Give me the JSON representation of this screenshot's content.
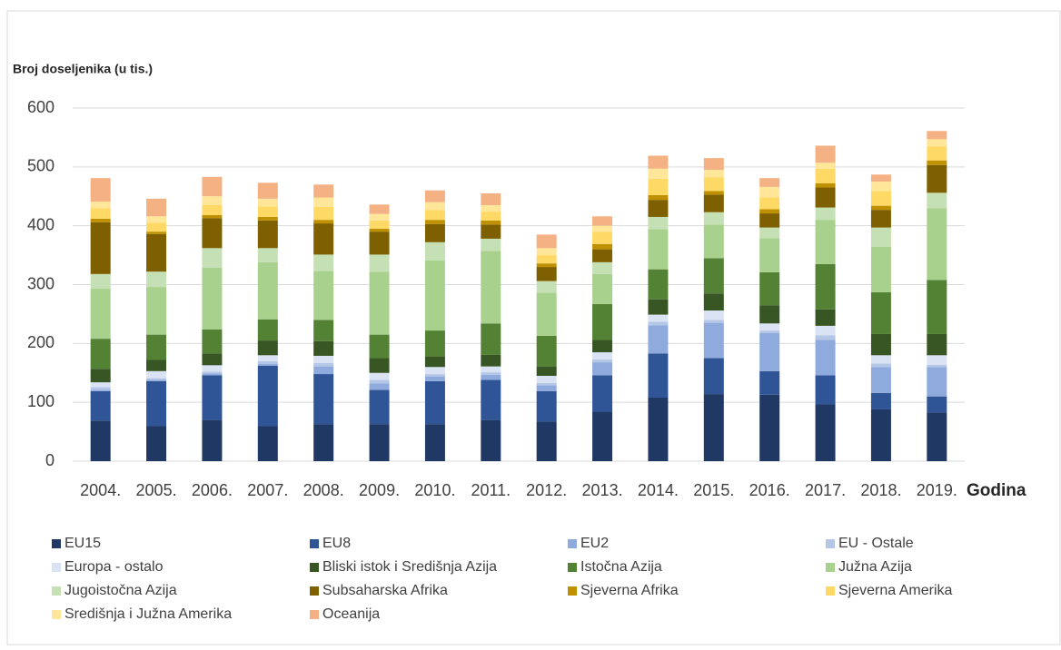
{
  "chart_data": {
    "type": "stacked_bar",
    "y_label": "Broj doseljenika (u tis.)",
    "x_label": "Godina",
    "categories": [
      "2004.",
      "2005.",
      "2006.",
      "2007.",
      "2008.",
      "2009.",
      "2010.",
      "2011.",
      "2012.",
      "2013.",
      "2014.",
      "2015.",
      "2016.",
      "2017.",
      "2018.",
      "2019."
    ],
    "ylim": [
      0,
      600
    ],
    "yticks": [
      0,
      100,
      200,
      300,
      400,
      500,
      600
    ],
    "grid": true,
    "legend": "bottom",
    "series": [
      {
        "name": "EU15",
        "color": "#203864",
        "values": [
          69,
          60,
          70,
          60,
          63,
          63,
          63,
          70,
          67,
          84,
          108,
          114,
          113,
          97,
          88,
          83
        ]
      },
      {
        "name": "EU8",
        "color": "#2f5597",
        "values": [
          50,
          76,
          76,
          102,
          85,
          58,
          73,
          68,
          52,
          62,
          75,
          61,
          40,
          49,
          28,
          27
        ]
      },
      {
        "name": "EU2",
        "color": "#8faadc",
        "values": [
          2,
          2,
          3,
          3,
          13,
          11,
          8,
          9,
          10,
          22,
          48,
          60,
          65,
          60,
          44,
          50
        ]
      },
      {
        "name": "EU - Ostale",
        "color": "#b4c7e7",
        "values": [
          5,
          3,
          3,
          5,
          6,
          6,
          4,
          4,
          4,
          5,
          6,
          5,
          4,
          8,
          6,
          4
        ]
      },
      {
        "name": "Europa - ostalo",
        "color": "#dae3f3",
        "values": [
          8,
          12,
          11,
          10,
          12,
          12,
          12,
          10,
          12,
          12,
          12,
          16,
          12,
          16,
          14,
          16
        ]
      },
      {
        "name": "Bliski istok i Središnja Azija",
        "color": "#375623",
        "values": [
          23,
          19,
          20,
          25,
          25,
          25,
          18,
          20,
          16,
          21,
          26,
          29,
          31,
          28,
          36,
          36
        ]
      },
      {
        "name": "Istočna Azija",
        "color": "#548235",
        "values": [
          51,
          43,
          41,
          36,
          36,
          40,
          44,
          53,
          52,
          61,
          51,
          60,
          56,
          77,
          71,
          92
        ]
      },
      {
        "name": "Južna Azija",
        "color": "#a9d18e",
        "values": [
          85,
          81,
          105,
          97,
          83,
          107,
          119,
          123,
          73,
          51,
          68,
          57,
          58,
          75,
          77,
          122
        ]
      },
      {
        "name": "Jugoistočna Azija",
        "color": "#c5e0b4",
        "values": [
          25,
          26,
          33,
          24,
          28,
          29,
          31,
          21,
          20,
          20,
          21,
          21,
          18,
          21,
          33,
          26
        ]
      },
      {
        "name": "Subsaharska Afrika",
        "color": "#7f6000",
        "values": [
          88,
          64,
          51,
          47,
          53,
          39,
          31,
          24,
          24,
          22,
          29,
          30,
          24,
          34,
          30,
          47
        ]
      },
      {
        "name": "Sjeverna Afrika",
        "color": "#bf9000",
        "values": [
          6,
          4,
          5,
          6,
          6,
          5,
          7,
          7,
          6,
          9,
          8,
          6,
          7,
          7,
          7,
          8
        ]
      },
      {
        "name": "Sjeverna Amerika",
        "color": "#ffd966",
        "values": [
          18,
          15,
          17,
          18,
          22,
          14,
          17,
          15,
          14,
          21,
          28,
          23,
          20,
          25,
          25,
          24
        ]
      },
      {
        "name": "Središnja i Južna Amerika",
        "color": "#ffe699",
        "values": [
          11,
          11,
          15,
          13,
          16,
          11,
          13,
          11,
          12,
          10,
          17,
          13,
          18,
          10,
          16,
          12
        ]
      },
      {
        "name": "Oceanija",
        "color": "#f4b183",
        "values": [
          40,
          30,
          33,
          27,
          22,
          16,
          20,
          20,
          23,
          16,
          22,
          20,
          15,
          29,
          12,
          14
        ]
      }
    ]
  }
}
